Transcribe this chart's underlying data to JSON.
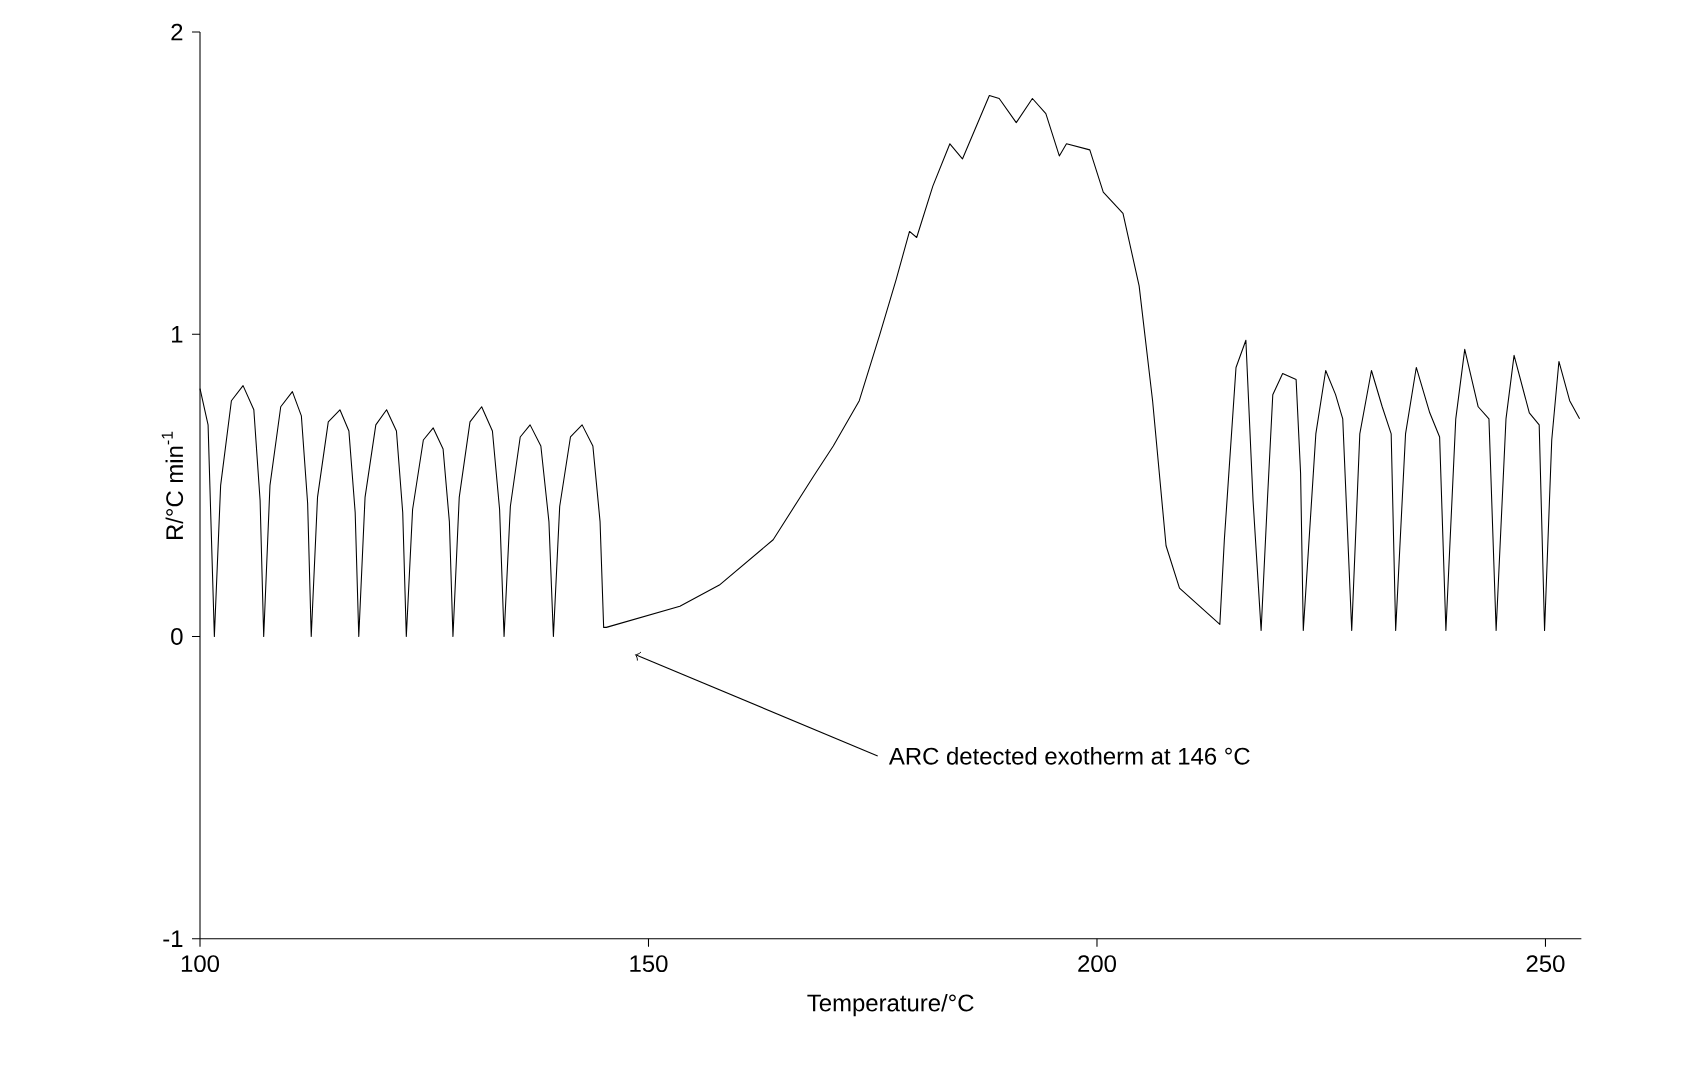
{
  "chart_data": {
    "type": "line",
    "xlabel": "Temperature/°C",
    "ylabel": "R/°C min$^{-1}$",
    "xlim": [
      100,
      254
    ],
    "xticks": [
      100,
      150,
      200,
      250
    ],
    "ylim": [
      -1,
      2
    ],
    "yticks": [
      -1,
      0,
      1,
      2
    ],
    "color": "#000000",
    "x": [
      100,
      100.9,
      101.6,
      102.3,
      103.5,
      104.8,
      106.0,
      106.7,
      107.1,
      107.8,
      109.0,
      110.3,
      111.3,
      112.0,
      112.4,
      113.1,
      114.3,
      115.6,
      116.6,
      117.3,
      117.7,
      118.4,
      119.6,
      120.8,
      121.9,
      122.6,
      123.0,
      123.7,
      124.9,
      126.0,
      127.1,
      127.8,
      128.2,
      128.9,
      130.1,
      131.4,
      132.6,
      133.4,
      133.9,
      134.6,
      135.7,
      136.8,
      138.0,
      138.9,
      139.4,
      140.1,
      141.3,
      142.6,
      143.8,
      144.6,
      145.0,
      145.3,
      153.5,
      157.9,
      163.9,
      168.4,
      170.6,
      173.5,
      175.8,
      177.6,
      179.1,
      179.9,
      181.7,
      183.6,
      185.0,
      188.0,
      189.1,
      191.0,
      192.8,
      194.3,
      195.8,
      196.6,
      199.2,
      200.7,
      202.9,
      204.7,
      206.2,
      207.7,
      209.2,
      213.7,
      214.2,
      215.5,
      216.6,
      217.4,
      218.3,
      219.0,
      219.6,
      220.7,
      222.2,
      222.7,
      223.0,
      224.4,
      225.5,
      226.6,
      227.4,
      228.4,
      229.3,
      230.6,
      231.8,
      232.8,
      233.3,
      234.4,
      235.6,
      237.1,
      238.2,
      238.9,
      240.0,
      241.0,
      242.5,
      243.7,
      244.5,
      245.6,
      246.5,
      248.2,
      249.3,
      249.9,
      250.7,
      251.5,
      252.7,
      253.8
    ],
    "values": [
      0.82,
      0.7,
      0,
      0.5,
      0.78,
      0.83,
      0.75,
      0.45,
      0,
      0.5,
      0.76,
      0.81,
      0.73,
      0.44,
      0,
      0.46,
      0.71,
      0.75,
      0.68,
      0.41,
      0,
      0.46,
      0.7,
      0.75,
      0.68,
      0.41,
      0,
      0.42,
      0.65,
      0.69,
      0.62,
      0.38,
      0,
      0.46,
      0.71,
      0.76,
      0.68,
      0.42,
      0,
      0.43,
      0.66,
      0.7,
      0.63,
      0.38,
      0,
      0.43,
      0.66,
      0.7,
      0.63,
      0.38,
      0.03,
      0.03,
      0.1,
      0.17,
      0.32,
      0.53,
      0.63,
      0.78,
      1.0,
      1.18,
      1.34,
      1.32,
      1.49,
      1.63,
      1.58,
      1.79,
      1.78,
      1.7,
      1.78,
      1.73,
      1.59,
      1.63,
      1.61,
      1.47,
      1.4,
      1.16,
      0.78,
      0.3,
      0.16,
      0.04,
      0.32,
      0.89,
      0.98,
      0.45,
      0.02,
      0.45,
      0.8,
      0.87,
      0.85,
      0.54,
      0.02,
      0.67,
      0.88,
      0.8,
      0.72,
      0.02,
      0.67,
      0.88,
      0.76,
      0.67,
      0.02,
      0.67,
      0.89,
      0.74,
      0.66,
      0.02,
      0.72,
      0.95,
      0.76,
      0.72,
      0.02,
      0.72,
      0.93,
      0.74,
      0.7,
      0.02,
      0.65,
      0.91,
      0.78,
      0.72
    ],
    "line_style": "solid",
    "annotations": [
      {
        "text": "ARC detected exotherm at 146 °C",
        "x": 148.5,
        "y": -0.06
      }
    ]
  }
}
